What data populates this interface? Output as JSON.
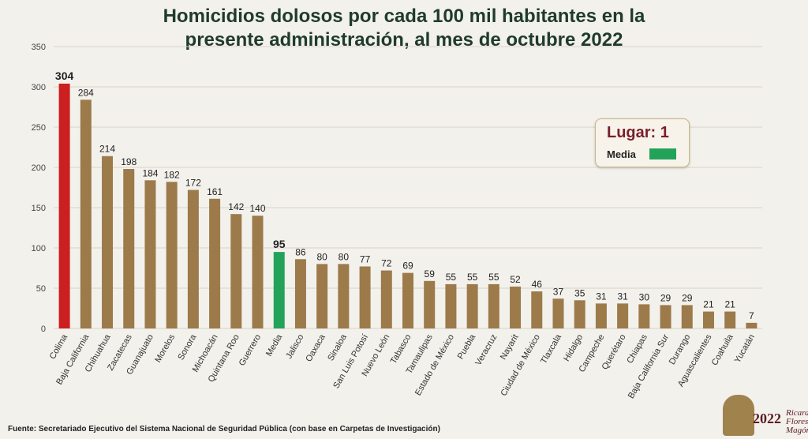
{
  "chart_data": {
    "type": "bar",
    "title": "Homicidios dolosos por cada 100 mil habitantes en la presente administración, al mes de octubre 2022",
    "title_lines": [
      "Homicidios dolosos por cada 100 mil habitantes en la",
      "presente administración, al mes de octubre 2022"
    ],
    "categories": [
      "Colima",
      "Baja California",
      "Chihuahua",
      "Zacatecas",
      "Guanajuato",
      "Morelos",
      "Sonora",
      "Michoacán",
      "Quintana Roo",
      "Guerrero",
      "Media",
      "Jalisco",
      "Oaxaca",
      "Sinaloa",
      "San Luis Potosí",
      "Nuevo León",
      "Tabasco",
      "Tamaulipas",
      "Estado de México",
      "Puebla",
      "Veracruz",
      "Nayarit",
      "Ciudad de México",
      "Tlaxcala",
      "Hidalgo",
      "Campeche",
      "Querétaro",
      "Chiapas",
      "Baja California Sur",
      "Durango",
      "Aguascalientes",
      "Coahuila",
      "Yucatán"
    ],
    "values": [
      304,
      284,
      214,
      198,
      184,
      182,
      172,
      161,
      142,
      140,
      95,
      86,
      80,
      80,
      77,
      72,
      69,
      59,
      55,
      55,
      55,
      52,
      46,
      37,
      35,
      31,
      31,
      30,
      29,
      29,
      21,
      21,
      7
    ],
    "highlight": {
      "Colima": "#cc1f1f",
      "Media": "#23a35a"
    },
    "bar_color": "#9c7a4a",
    "ylim": [
      0,
      350
    ],
    "yticks": [
      0,
      50,
      100,
      150,
      200,
      250,
      300,
      350
    ],
    "grid": true,
    "legend_position": "top-right"
  },
  "legend": {
    "lugar_label": "Lugar:",
    "lugar_value": "1",
    "media_label": "Media"
  },
  "footer": "Fuente: Secretariado Ejecutivo del Sistema Nacional de Seguridad Pública (con base en Carpetas de Investigación)",
  "logo": {
    "year": "2022",
    "name": "Ricardo Flores Magón"
  }
}
